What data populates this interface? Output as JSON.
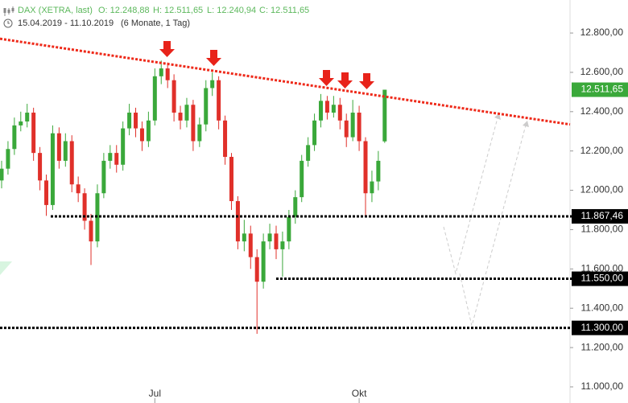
{
  "chart_data": {
    "type": "candlestick",
    "title": "DAX (XETRA, last)",
    "header_values": [
      "O: 12.248,88",
      "H: 12.511,65",
      "L: 12.240,94",
      "C: 12.511,65"
    ],
    "period": "15.04.2019 - 11.10.2019",
    "period_note": "(6 Monate, 1 Tag)",
    "categories": [
      null,
      null,
      null,
      null,
      null,
      null,
      null,
      null,
      null,
      null,
      null,
      null,
      null,
      null,
      null,
      null,
      null,
      null,
      null,
      null,
      null,
      null,
      null,
      null,
      "Jul",
      null,
      null,
      null,
      null,
      null,
      null,
      null,
      null,
      null,
      null,
      null,
      null,
      null,
      null,
      null,
      null,
      null,
      null,
      null,
      null,
      null,
      null,
      null,
      null,
      null,
      null,
      null,
      null,
      null,
      null,
      null,
      "Okt",
      null,
      null,
      null,
      null
    ],
    "open": [
      12050,
      12110,
      12210,
      12330,
      12350,
      12395,
      12190,
      12050,
      11925,
      12290,
      12150,
      12250,
      12030,
      11985,
      11845,
      11740,
      11985,
      12150,
      12190,
      12130,
      12315,
      12395,
      12315,
      12250,
      12355,
      12580,
      12620,
      12560,
      12395,
      12355,
      12435,
      12250,
      12335,
      12520,
      12560,
      12355,
      12170,
      11945,
      11740,
      11780,
      11660,
      11535,
      11740,
      11780,
      11700,
      11740,
      11865,
      11965,
      12150,
      12230,
      12355,
      12455,
      12395,
      12435,
      12355,
      12270,
      12395,
      12250,
      11985,
      12045,
      12248.88
    ],
    "high": [
      12150,
      12250,
      12370,
      12400,
      12440,
      12420,
      12220,
      12080,
      12330,
      12320,
      12290,
      12280,
      12070,
      12010,
      11880,
      12030,
      12190,
      12230,
      12230,
      12350,
      12440,
      12420,
      12350,
      12400,
      12620,
      12660,
      12650,
      12590,
      12430,
      12470,
      12460,
      12370,
      12560,
      12600,
      12580,
      12380,
      12190,
      11970,
      11850,
      11820,
      11700,
      11780,
      11830,
      11820,
      11790,
      11900,
      12000,
      12180,
      12270,
      12390,
      12490,
      12480,
      12480,
      12470,
      12390,
      12460,
      12430,
      12270,
      12100,
      12200,
      12511.65
    ],
    "low": [
      12010,
      12080,
      12180,
      12300,
      12320,
      12150,
      12000,
      11870,
      11900,
      12110,
      12120,
      11990,
      11940,
      11800,
      11620,
      11710,
      11960,
      12110,
      12090,
      12100,
      12280,
      12270,
      12200,
      12220,
      12330,
      12540,
      12520,
      12350,
      12310,
      12320,
      12200,
      12220,
      12300,
      12480,
      12310,
      12130,
      11900,
      11700,
      11690,
      11600,
      11270,
      11500,
      11700,
      11650,
      11560,
      11700,
      11830,
      11940,
      12120,
      12200,
      12320,
      12360,
      12370,
      12310,
      12220,
      12250,
      12200,
      11870,
      11940,
      12000,
      12240.94
    ],
    "close": [
      12110,
      12210,
      12330,
      12350,
      12395,
      12190,
      12050,
      11925,
      12290,
      12150,
      12250,
      12030,
      11985,
      11845,
      11740,
      11985,
      12150,
      12190,
      12130,
      12315,
      12395,
      12315,
      12250,
      12355,
      12580,
      12620,
      12560,
      12395,
      12355,
      12435,
      12250,
      12335,
      12520,
      12560,
      12355,
      12170,
      11945,
      11740,
      11780,
      11660,
      11535,
      11740,
      11780,
      11700,
      11740,
      11865,
      11965,
      12150,
      12230,
      12355,
      12455,
      12395,
      12435,
      12355,
      12270,
      12395,
      12250,
      11985,
      12045,
      12150,
      12511.65
    ],
    "up_color": "#3aa83a",
    "down_color": "#e0302a",
    "last_label": "12.511,65",
    "levels": [
      {
        "value": 11867.46,
        "label": "11.867,46"
      },
      {
        "value": 11550,
        "label": "11.550,00"
      },
      {
        "value": 11300,
        "label": "11.300,00"
      }
    ],
    "trendline": {
      "start": 12771,
      "end": 12335,
      "color": "#ee2a1a"
    },
    "ylim": [
      10918,
      12968
    ],
    "yticks": [
      {
        "value": 11000,
        "label": "11.000,00"
      },
      {
        "value": 11200,
        "label": "11.200,00"
      },
      {
        "value": 11400,
        "label": "11.400,00"
      },
      {
        "value": 11600,
        "label": "11.600,00"
      },
      {
        "value": 11800,
        "label": "11.800,00"
      },
      {
        "value": 12000,
        "label": "12.000,00"
      },
      {
        "value": 12200,
        "label": "12.200,00"
      },
      {
        "value": 12400,
        "label": "12.400,00"
      },
      {
        "value": 12600,
        "label": "12.600,00"
      },
      {
        "value": 12800,
        "label": "12.800,00"
      }
    ]
  }
}
